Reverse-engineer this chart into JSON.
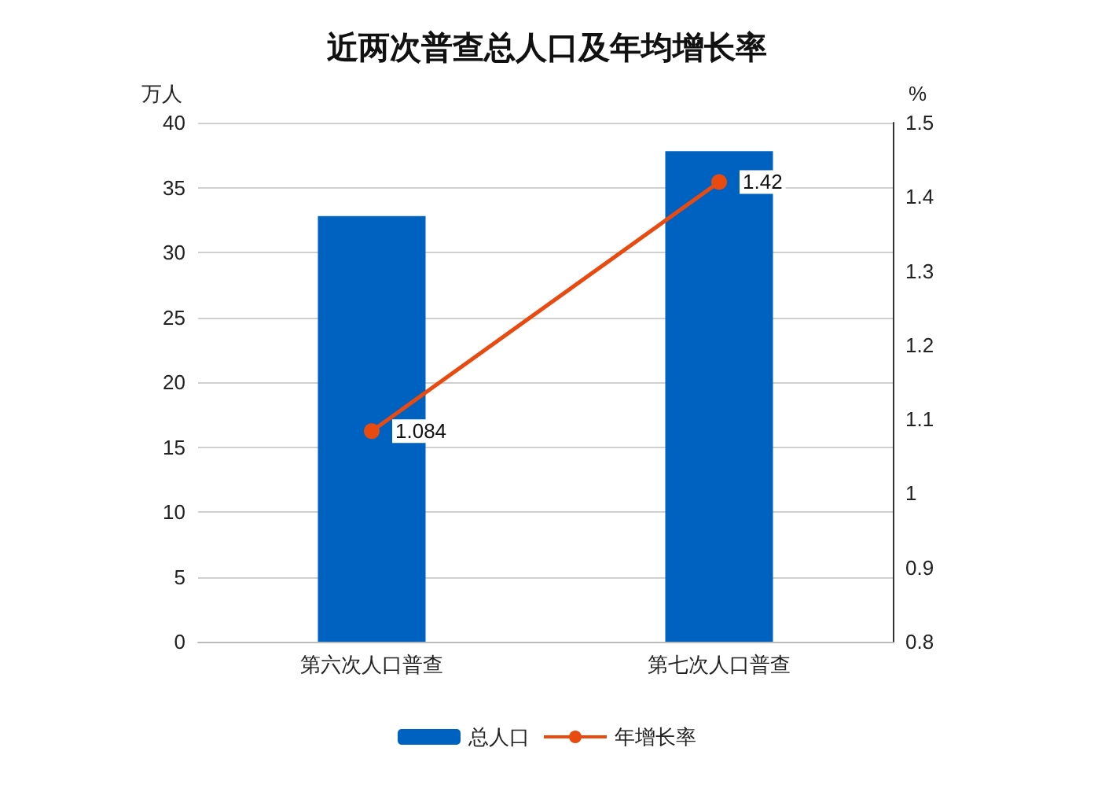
{
  "chart_data": {
    "type": "bar",
    "title": "近两次普查总人口及年均增长率",
    "ylabel": "万人",
    "y2label": "%",
    "categories": [
      "第六次人口普查",
      "第七次人口普查"
    ],
    "series": [
      {
        "name": "总人口",
        "color": "#0062c0",
        "values": [
          32.8,
          37.8
        ]
      },
      {
        "name": "年增长率",
        "type": "line",
        "axis": "y2",
        "color": "#e84a10",
        "values": [
          1.084,
          1.42
        ],
        "value_labels": [
          "1.084",
          "1.42"
        ]
      }
    ],
    "ylim": [
      0,
      40
    ],
    "yticks": [
      0,
      5,
      10,
      15,
      20,
      25,
      30,
      35,
      40
    ],
    "y2lim": [
      0.8,
      1.5
    ],
    "y2ticks": [
      0.8,
      0.9,
      1,
      1.1,
      1.2,
      1.3,
      1.4,
      1.5
    ],
    "grid": "y",
    "legend": "bottom",
    "marker": "circle"
  }
}
